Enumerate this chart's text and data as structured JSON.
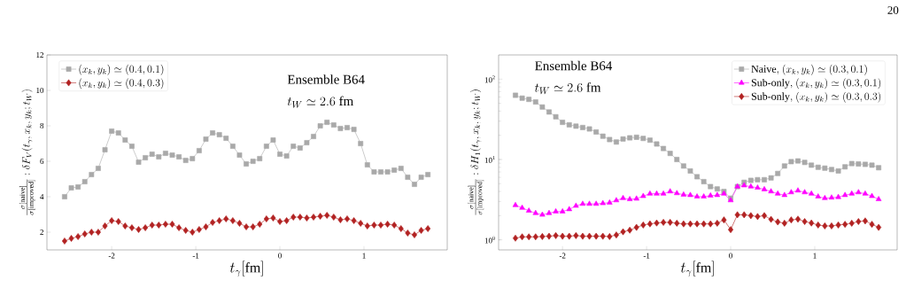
{
  "chart_data": [
    {
      "type": "line",
      "xlabel": "t_\\gamma[\\mathrm{fm}]",
      "ylabel": "\\frac{\\sigma[\\mathrm{naive}]}{\\sigma[\\mathrm{improved}]}:\\delta F_V(t_\\gamma,x_k,y_k;t_W)",
      "annotations": [
        "Ensemble B64",
        "t_W\\simeq 2.6\\ \\mathrm{fm}"
      ],
      "x": [
        -2.56,
        -2.48,
        -2.4,
        -2.32,
        -2.24,
        -2.16,
        -2.08,
        -2.0,
        -1.92,
        -1.84,
        -1.76,
        -1.68,
        -1.6,
        -1.52,
        -1.44,
        -1.36,
        -1.28,
        -1.2,
        -1.12,
        -1.04,
        -0.96,
        -0.88,
        -0.8,
        -0.72,
        -0.64,
        -0.56,
        -0.48,
        -0.4,
        -0.32,
        -0.24,
        -0.16,
        -0.08,
        0.0,
        0.08,
        0.16,
        0.24,
        0.32,
        0.4,
        0.48,
        0.56,
        0.64,
        0.72,
        0.8,
        0.88,
        0.96,
        1.04,
        1.12,
        1.2,
        1.28,
        1.36,
        1.44,
        1.52,
        1.6,
        1.68,
        1.76
      ],
      "series": [
        {
          "name": "(x_k,y_k)\\simeq(0.4,0.1)",
          "color": "#a9a9a9",
          "marker": "square",
          "values": [
            4.0,
            4.5,
            4.55,
            4.85,
            5.25,
            5.6,
            6.65,
            7.7,
            7.6,
            7.2,
            6.85,
            5.95,
            6.2,
            6.4,
            6.25,
            6.45,
            6.35,
            6.25,
            6.05,
            6.15,
            6.6,
            7.25,
            7.6,
            7.5,
            7.3,
            6.85,
            6.35,
            5.85,
            6.0,
            6.15,
            6.85,
            7.2,
            6.4,
            6.3,
            6.85,
            6.75,
            7.05,
            7.4,
            8.0,
            8.2,
            8.05,
            7.85,
            7.9,
            7.8,
            7.0,
            5.8,
            5.4,
            5.4,
            5.4,
            5.5,
            5.6,
            5.1,
            4.7,
            5.1,
            5.25
          ]
        },
        {
          "name": "(x_k,y_k)\\simeq(0.4,0.3)",
          "color": "#b22222",
          "marker": "diamond",
          "values": [
            1.5,
            1.65,
            1.75,
            1.9,
            2.0,
            2.0,
            2.35,
            2.65,
            2.6,
            2.35,
            2.25,
            2.15,
            2.25,
            2.4,
            2.4,
            2.45,
            2.45,
            2.25,
            2.1,
            2.0,
            2.15,
            2.3,
            2.55,
            2.65,
            2.75,
            2.65,
            2.5,
            2.3,
            2.3,
            2.45,
            2.75,
            2.8,
            2.6,
            2.65,
            2.85,
            2.85,
            2.8,
            2.85,
            2.9,
            2.95,
            2.85,
            2.7,
            2.75,
            2.65,
            2.5,
            2.35,
            2.4,
            2.4,
            2.45,
            2.4,
            2.2,
            1.95,
            1.85,
            2.1,
            2.2
          ]
        }
      ],
      "xlim": [
        -2.77,
        1.99
      ],
      "ylim": [
        1,
        12
      ],
      "xticks": [
        -2,
        -1,
        0,
        1
      ],
      "yticks": [
        2,
        4,
        6,
        8,
        10,
        12
      ],
      "legend": "top left",
      "grid": false
    },
    {
      "type": "line",
      "xlabel": "t_\\gamma[\\mathrm{fm}]",
      "ylabel": "\\frac{\\sigma[\\mathrm{naive}]}{\\sigma[\\mathrm{improved}]}:\\delta H_1(t_\\gamma,x_k,y_k;t_W)",
      "annotations": [
        "Ensemble B64",
        "t_W\\simeq 2.6\\ \\mathrm{fm}",
        "20"
      ],
      "x": [
        -2.56,
        -2.48,
        -2.4,
        -2.32,
        -2.24,
        -2.16,
        -2.08,
        -2.0,
        -1.92,
        -1.84,
        -1.76,
        -1.68,
        -1.6,
        -1.52,
        -1.44,
        -1.36,
        -1.28,
        -1.2,
        -1.12,
        -1.04,
        -0.96,
        -0.88,
        -0.8,
        -0.72,
        -0.64,
        -0.56,
        -0.48,
        -0.4,
        -0.32,
        -0.24,
        -0.16,
        -0.08,
        0.0,
        0.08,
        0.16,
        0.24,
        0.32,
        0.4,
        0.48,
        0.56,
        0.64,
        0.72,
        0.8,
        0.88,
        0.96,
        1.04,
        1.12,
        1.2,
        1.28,
        1.36,
        1.44,
        1.52,
        1.6,
        1.68,
        1.76
      ],
      "series": [
        {
          "name": "\\mathrm{Naive,}\\ (x_k,y_k)\\simeq(0.3,0.1)",
          "color": "#a9a9a9",
          "marker": "square",
          "values": [
            63,
            58,
            56,
            52,
            45,
            39,
            34,
            29,
            27,
            26,
            25,
            24,
            22,
            19.5,
            17.7,
            16.5,
            18,
            18.6,
            18.9,
            18.3,
            17.4,
            15.6,
            13.7,
            11.9,
            10,
            8.3,
            7.2,
            6.1,
            5.3,
            4.6,
            4.3,
            4.0,
            3.3,
            4.6,
            5.2,
            5.5,
            5.6,
            5.6,
            5.9,
            6.7,
            8.3,
            9.4,
            9.6,
            9.2,
            8.5,
            8.0,
            7.8,
            7.5,
            7.2,
            8.1,
            8.9,
            8.8,
            8.7,
            8.5,
            7.9
          ]
        },
        {
          "name": "\\mathrm{Sub\\text{-}only,}\\ (x_k,y_k)\\simeq(0.3,0.1)",
          "color": "#ff00ff",
          "marker": "triangle",
          "values": [
            2.7,
            2.5,
            2.3,
            2.15,
            2.05,
            2.15,
            2.25,
            2.25,
            2.4,
            2.65,
            2.8,
            2.8,
            2.8,
            2.85,
            2.9,
            3.1,
            3.3,
            3.2,
            3.25,
            3.5,
            3.75,
            3.75,
            3.75,
            4.0,
            3.8,
            3.65,
            3.6,
            3.45,
            3.45,
            3.55,
            3.6,
            3.75,
            3.1,
            4.6,
            4.75,
            4.6,
            4.45,
            4.25,
            4.0,
            3.75,
            3.6,
            3.9,
            4.1,
            3.9,
            3.75,
            3.45,
            3.3,
            3.35,
            3.4,
            3.6,
            3.75,
            3.9,
            3.75,
            3.5,
            3.2
          ]
        },
        {
          "name": "\\mathrm{Sub\\text{-}only,}\\ (x_k,y_k)\\simeq(0.3,0.3)",
          "color": "#b22222",
          "marker": "diamond",
          "values": [
            1.05,
            1.09,
            1.09,
            1.09,
            1.1,
            1.11,
            1.13,
            1.11,
            1.11,
            1.13,
            1.11,
            1.11,
            1.11,
            1.11,
            1.1,
            1.15,
            1.26,
            1.32,
            1.43,
            1.53,
            1.58,
            1.62,
            1.65,
            1.65,
            1.61,
            1.58,
            1.58,
            1.58,
            1.58,
            1.58,
            1.61,
            1.77,
            1.34,
            2.05,
            2.05,
            2.0,
            1.95,
            2.0,
            1.8,
            1.67,
            1.61,
            1.77,
            1.81,
            1.69,
            1.62,
            1.53,
            1.49,
            1.49,
            1.53,
            1.56,
            1.61,
            1.69,
            1.72,
            1.56,
            1.43
          ]
        }
      ],
      "xlim": [
        -2.76,
        1.98
      ],
      "ylim": [
        0.75,
        200
      ],
      "log": true,
      "xticks": [
        -2,
        -1,
        0,
        1
      ],
      "yticks": [
        {
          "value": 1,
          "label": "10$^{0}$"
        },
        {
          "value": 10,
          "label": "10$^{1}$"
        },
        {
          "value": 100,
          "label": "10$^{2}$"
        }
      ],
      "legend": "top right",
      "grid": false
    }
  ]
}
